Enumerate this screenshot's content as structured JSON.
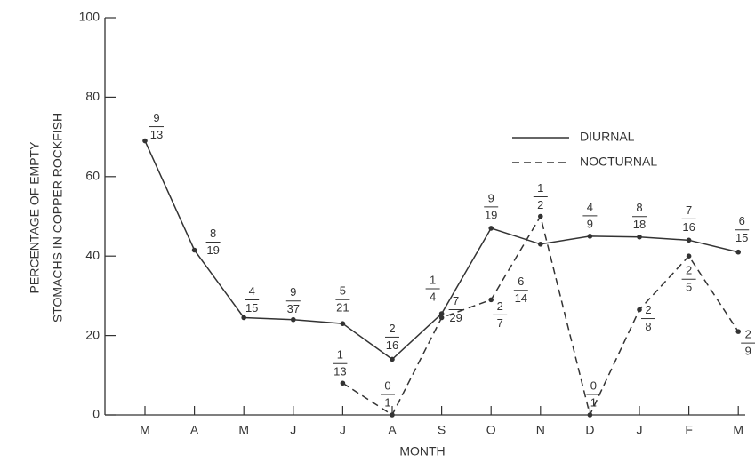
{
  "chart_data": {
    "type": "line",
    "y_label": [
      "PERCENTAGE OF EMPTY",
      "STOMACHS IN COPPER ROCKFISH"
    ],
    "x_label": "MONTH",
    "categories": [
      "M",
      "A",
      "M",
      "J",
      "J",
      "A",
      "S",
      "O",
      "N",
      "D",
      "J",
      "F",
      "M"
    ],
    "series": [
      {
        "name": "DIURNAL",
        "color": "#333333",
        "dash": false,
        "values": [
          69,
          41.5,
          24.5,
          24,
          23,
          14,
          25.5,
          47,
          43,
          45,
          44.8,
          44,
          41
        ],
        "value_labels": [
          [
            "9",
            "13"
          ],
          [
            "8",
            "19"
          ],
          [
            "4",
            "15"
          ],
          [
            "9",
            "37"
          ],
          [
            "5",
            "21"
          ],
          [
            "2",
            "16"
          ],
          [
            "1",
            "4"
          ],
          [
            "9",
            "19"
          ],
          [
            "6",
            "14"
          ],
          [
            "4",
            "9"
          ],
          [
            "8",
            "18"
          ],
          [
            "7",
            "16"
          ],
          [
            "6",
            "15"
          ]
        ]
      },
      {
        "name": "NOCTURNAL",
        "color": "#333333",
        "dash": true,
        "values": [
          null,
          null,
          null,
          null,
          8,
          0,
          24.5,
          29,
          50,
          0,
          26.5,
          40,
          21
        ],
        "value_labels": [
          null,
          null,
          null,
          null,
          [
            "1",
            "13"
          ],
          [
            "0",
            "1"
          ],
          [
            "7",
            "29"
          ],
          [
            "2",
            "7"
          ],
          [
            "1",
            "2"
          ],
          [
            "0",
            "1"
          ],
          [
            "2",
            "8"
          ],
          [
            "2",
            "5"
          ],
          [
            "2",
            "9"
          ]
        ]
      }
    ],
    "ylim": [
      0,
      100
    ],
    "yticks": [
      0,
      20,
      40,
      60,
      80,
      100
    ]
  }
}
